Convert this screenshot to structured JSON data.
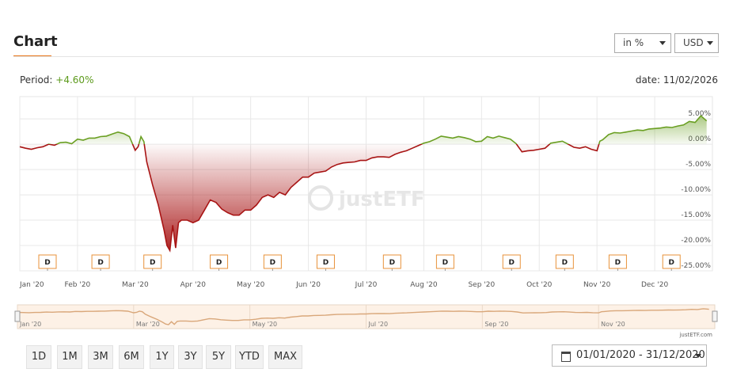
{
  "header": {
    "title": "Chart"
  },
  "selects": [
    "in %",
    "USD"
  ],
  "period_label": "Period:",
  "period_value": "+4.60%",
  "date": "date: 11/02/2026",
  "chart_data": {
    "type": "area",
    "positive_color": "#6a9f22",
    "negative_color": "#a81414",
    "navigator_color": "#d9a77a",
    "watermark": "justETF",
    "credit": "justETF.com",
    "grid": true,
    "xlim": [
      0,
      12
    ],
    "ylim": [
      -25,
      9.4
    ],
    "xticks": [
      {
        "value": 0,
        "label": "Jan '20"
      },
      {
        "value": 1,
        "label": "Feb '20"
      },
      {
        "value": 2,
        "label": "Mar '20"
      },
      {
        "value": 3,
        "label": "Apr '20"
      },
      {
        "value": 4,
        "label": "May '20"
      },
      {
        "value": 5,
        "label": "Jun '20"
      },
      {
        "value": 6,
        "label": "Jul '20"
      },
      {
        "value": 7,
        "label": "Aug '20"
      },
      {
        "value": 8,
        "label": "Sep '20"
      },
      {
        "value": 9,
        "label": "Oct '20"
      },
      {
        "value": 10,
        "label": "Nov '20"
      },
      {
        "value": 11,
        "label": "Dec '20"
      }
    ],
    "yticks": [
      {
        "value": 5,
        "label": "5.00%"
      },
      {
        "value": 0,
        "label": "0.00%"
      },
      {
        "value": -5,
        "label": "-5.00%"
      },
      {
        "value": -10,
        "label": "-10.00%"
      },
      {
        "value": -15,
        "label": "-15.00%"
      },
      {
        "value": -20,
        "label": "-20.00%"
      },
      {
        "value": -25,
        "label": "-25.00%"
      }
    ],
    "x": [
      0,
      0.1,
      0.2,
      0.3,
      0.4,
      0.5,
      0.6,
      0.7,
      0.8,
      0.9,
      1.0,
      1.1,
      1.2,
      1.3,
      1.4,
      1.5,
      1.6,
      1.7,
      1.8,
      1.9,
      2.0,
      2.05,
      2.1,
      2.15,
      2.2,
      2.3,
      2.4,
      2.5,
      2.55,
      2.6,
      2.65,
      2.7,
      2.75,
      2.8,
      2.9,
      3.0,
      3.1,
      3.2,
      3.3,
      3.4,
      3.5,
      3.6,
      3.7,
      3.8,
      3.9,
      4.0,
      4.1,
      4.2,
      4.3,
      4.4,
      4.5,
      4.6,
      4.7,
      4.8,
      4.9,
      5.0,
      5.1,
      5.2,
      5.3,
      5.4,
      5.5,
      5.6,
      5.7,
      5.8,
      5.9,
      6.0,
      6.1,
      6.2,
      6.3,
      6.4,
      6.5,
      6.6,
      6.7,
      6.8,
      6.9,
      7.0,
      7.1,
      7.2,
      7.3,
      7.4,
      7.5,
      7.6,
      7.7,
      7.8,
      7.9,
      8.0,
      8.1,
      8.2,
      8.3,
      8.4,
      8.5,
      8.6,
      8.7,
      8.8,
      8.9,
      9.0,
      9.1,
      9.2,
      9.3,
      9.4,
      9.5,
      9.6,
      9.7,
      9.8,
      9.9,
      10.0,
      10.05,
      10.1,
      10.2,
      10.3,
      10.4,
      10.5,
      10.6,
      10.7,
      10.8,
      10.9,
      11.0,
      11.1,
      11.2,
      11.3,
      11.4,
      11.5,
      11.6,
      11.7,
      11.8,
      11.9
    ],
    "values": [
      -0.5,
      -0.8,
      -1,
      -0.7,
      -0.5,
      0,
      -0.2,
      0.3,
      0.4,
      0.1,
      1.0,
      0.8,
      1.2,
      1.2,
      1.5,
      1.6,
      2.0,
      2.4,
      2.1,
      1.5,
      -1.2,
      -0.5,
      1.5,
      0.5,
      -3.5,
      -8,
      -12,
      -17,
      -20,
      -21,
      -16,
      -20.5,
      -15.5,
      -15,
      -15,
      -15.5,
      -15,
      -13,
      -11,
      -11.5,
      -12.8,
      -13.5,
      -14,
      -14,
      -13,
      -13,
      -12,
      -10.5,
      -10,
      -10.5,
      -9.5,
      -10,
      -8.5,
      -7.5,
      -6.5,
      -6.5,
      -5.7,
      -5.5,
      -5.3,
      -4.5,
      -4,
      -3.7,
      -3.6,
      -3.5,
      -3.2,
      -3.2,
      -2.7,
      -2.5,
      -2.5,
      -2.6,
      -2,
      -1.6,
      -1.3,
      -0.8,
      -0.3,
      0.2,
      0.5,
      1.0,
      1.6,
      1.4,
      1.2,
      1.5,
      1.3,
      1.0,
      0.5,
      0.6,
      1.5,
      1.2,
      1.6,
      1.3,
      1.0,
      0.1,
      -1.5,
      -1.3,
      -1.2,
      -1.0,
      -0.8,
      0.2,
      0.4,
      0.6,
      0.0,
      -0.6,
      -0.8,
      -0.5,
      -1.0,
      -1.3,
      0.6,
      0.9,
      1.9,
      2.3,
      2.2,
      2.4,
      2.6,
      2.8,
      2.7,
      3.0,
      3.1,
      3.2,
      3.4,
      3.3,
      3.6,
      3.8,
      4.5,
      4.3,
      5.6,
      4.6
    ],
    "markers": {
      "label": "D",
      "x": [
        0.48,
        1.4,
        2.3,
        3.45,
        4.38,
        5.3,
        6.45,
        7.37,
        8.52,
        9.44,
        10.36,
        11.29
      ]
    }
  },
  "range_buttons": [
    "1D",
    "1M",
    "3M",
    "6M",
    "1Y",
    "3Y",
    "5Y",
    "YTD",
    "MAX"
  ],
  "date_range": "01/01/2020 - 31/12/2020"
}
